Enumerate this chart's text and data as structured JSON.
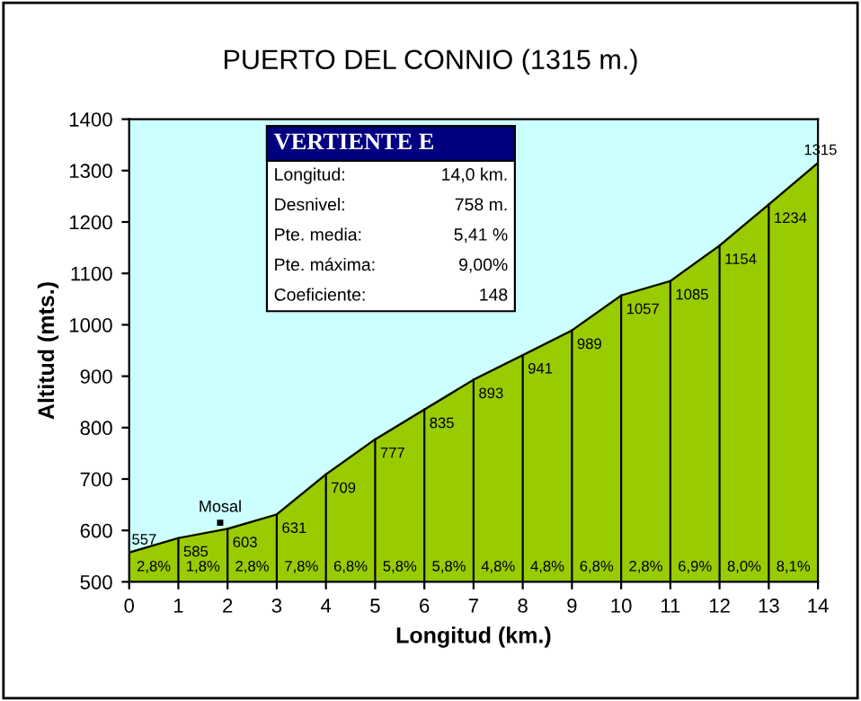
{
  "chart_data": {
    "type": "area",
    "title": "PUERTO DEL CONNIO (1315 m.)",
    "xlabel": "Longitud (km.)",
    "ylabel": "Altitud (mts.)",
    "x": [
      0,
      1,
      2,
      3,
      4,
      5,
      6,
      7,
      8,
      9,
      10,
      11,
      12,
      13,
      14
    ],
    "series": [
      {
        "color": "#99cc00",
        "values": [
          557,
          585,
          603,
          631,
          709,
          777,
          835,
          893,
          941,
          989,
          1057,
          1085,
          1154,
          1234,
          1315
        ]
      }
    ],
    "data_labels": true,
    "grid": "x",
    "xlim": [
      0,
      14
    ],
    "xticks": [
      0,
      1,
      2,
      3,
      4,
      5,
      6,
      7,
      8,
      9,
      10,
      11,
      12,
      13,
      14
    ],
    "ylim": [
      500,
      1400
    ],
    "yticks": [
      500,
      600,
      700,
      800,
      900,
      1000,
      1100,
      1200,
      1300,
      1400
    ],
    "annotations": [
      "VERTIENTE E",
      "Longitud:",
      "14,0 km.",
      "Desnivel:",
      "758 m.",
      "Pte. media:",
      "5,41 %",
      "Pte. máxima:",
      "9,00%",
      "Coeficiente:",
      "148",
      {
        "text": "Mosal",
        "x": 1.85,
        "y": 615
      },
      {
        "text": "2,8%",
        "x": 0.5,
        "y": 500
      },
      {
        "text": "1,8%",
        "x": 1.5,
        "y": 500
      },
      {
        "text": "2,8%",
        "x": 2.5,
        "y": 500
      },
      {
        "text": "7,8%",
        "x": 3.5,
        "y": 500
      },
      {
        "text": "6,8%",
        "x": 4.5,
        "y": 500
      },
      {
        "text": "5,8%",
        "x": 5.5,
        "y": 500
      },
      {
        "text": "5,8%",
        "x": 6.5,
        "y": 500
      },
      {
        "text": "4,8%",
        "x": 7.5,
        "y": 500
      },
      {
        "text": "4,8%",
        "x": 8.5,
        "y": 500
      },
      {
        "text": "6,8%",
        "x": 9.5,
        "y": 500
      },
      {
        "text": "2,8%",
        "x": 10.5,
        "y": 500
      },
      {
        "text": "6,9%",
        "x": 11.5,
        "y": 500
      },
      {
        "text": "8,0%",
        "x": 12.5,
        "y": 500
      },
      {
        "text": "8,1%",
        "x": 13.5,
        "y": 500
      }
    ]
  }
}
